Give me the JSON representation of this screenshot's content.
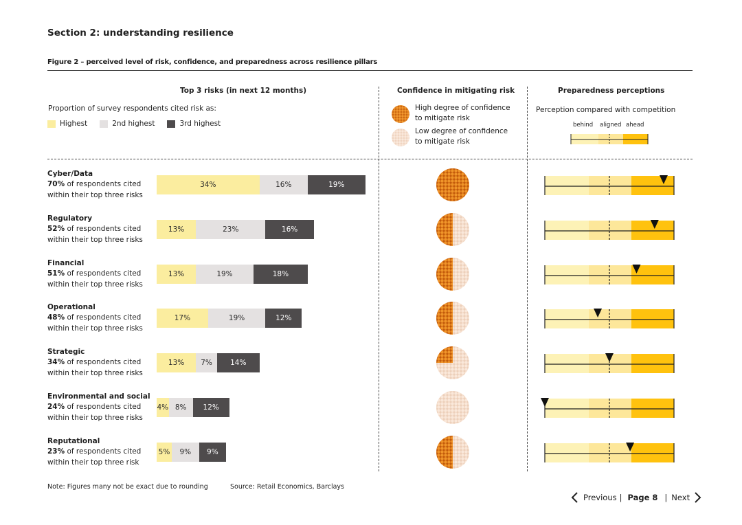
{
  "section_title": "Section 2: understanding resilience",
  "figure_title": "Figure 2 – perceived level of risk, confidence, and preparedness across resilience pillars",
  "columns": {
    "risks": "Top 3 risks (in next 12 months)",
    "confidence": "Confidence in mitigating risk",
    "preparedness": "Preparedness perceptions"
  },
  "legend": {
    "intro": "Proportion of survey respondents cited risk as:",
    "highest": "Highest",
    "second": "2nd highest",
    "third": "3rd highest",
    "high_conf_line1": "High degree of confidence",
    "high_conf_line2": "to mitigate risk",
    "low_conf_line1": "Low degree of confidence",
    "low_conf_line2": "to mitigate risk",
    "perception": "Perception compared with competition",
    "behind": "behind",
    "aligned": "aligned",
    "ahead": "ahead"
  },
  "colors": {
    "highest": "#fbed9f",
    "second": "#e4e1e1",
    "third": "#4e4b4c",
    "prep_light": "#fdf2b6",
    "prep_mid": "#fde79a",
    "prep_ahead": "#ffc20e",
    "orange": "#e07b14",
    "peach": "#f6dcc6"
  },
  "chart_data": {
    "type": "bar",
    "stacked": true,
    "categories": [
      "Cyber/Data",
      "Regulatory",
      "Financial",
      "Operational",
      "Strategic",
      "Environmental and social",
      "Reputational"
    ],
    "series": [
      {
        "name": "Highest",
        "values": [
          34,
          13,
          13,
          17,
          13,
          4,
          5
        ]
      },
      {
        "name": "2nd highest",
        "values": [
          16,
          23,
          19,
          19,
          7,
          8,
          9
        ]
      },
      {
        "name": "3rd highest",
        "values": [
          19,
          16,
          18,
          12,
          14,
          12,
          9
        ]
      }
    ],
    "rows": [
      {
        "name": "Cyber/Data",
        "pct": "70%",
        "line1": " of respondents cited",
        "line2": "within their top three risks",
        "labels": [
          "34%",
          "16%",
          "19%"
        ],
        "confidence_fraction": 1.0,
        "preparedness": 0.92
      },
      {
        "name": "Regulatory",
        "pct": "52%",
        "line1": " of respondents cited",
        "line2": "within their top three risks",
        "labels": [
          "13%",
          "23%",
          "16%"
        ],
        "confidence_fraction": 0.5,
        "preparedness": 0.85
      },
      {
        "name": "Financial",
        "pct": "51%",
        "line1": " of respondents cited",
        "line2": "within their top three risks",
        "labels": [
          "13%",
          "19%",
          "18%"
        ],
        "confidence_fraction": 0.5,
        "preparedness": 0.71
      },
      {
        "name": "Operational",
        "pct": "48%",
        "line1": " of respondents cited",
        "line2": "within their top three risks",
        "labels": [
          "17%",
          "19%",
          "12%"
        ],
        "confidence_fraction": 0.5,
        "preparedness": 0.41
      },
      {
        "name": "Strategic",
        "pct": "34%",
        "line1": " of respondents cited",
        "line2": "within their top three risks",
        "labels": [
          "13%",
          "7%",
          "14%"
        ],
        "confidence_fraction": 0.25,
        "preparedness": 0.5
      },
      {
        "name": "Environmental and social",
        "pct": "24%",
        "line1": " of respondents cited",
        "line2": "within their top three risks",
        "labels": [
          "4%",
          "8%",
          "12%"
        ],
        "confidence_fraction": 0.0,
        "preparedness": 0.0
      },
      {
        "name": "Reputational",
        "pct": "23%",
        "line1": " of respondents cited",
        "line2": "within their top three risk",
        "labels": [
          "5%",
          "9%",
          "9%"
        ],
        "confidence_fraction": 0.5,
        "preparedness": 0.66
      }
    ]
  },
  "footer": {
    "note": "Note: Figures many not be exact due to rounding",
    "source": "Source: Retail Economics, Barclays"
  },
  "nav": {
    "previous": "Previous",
    "page": "Page 8",
    "next": "Next"
  }
}
